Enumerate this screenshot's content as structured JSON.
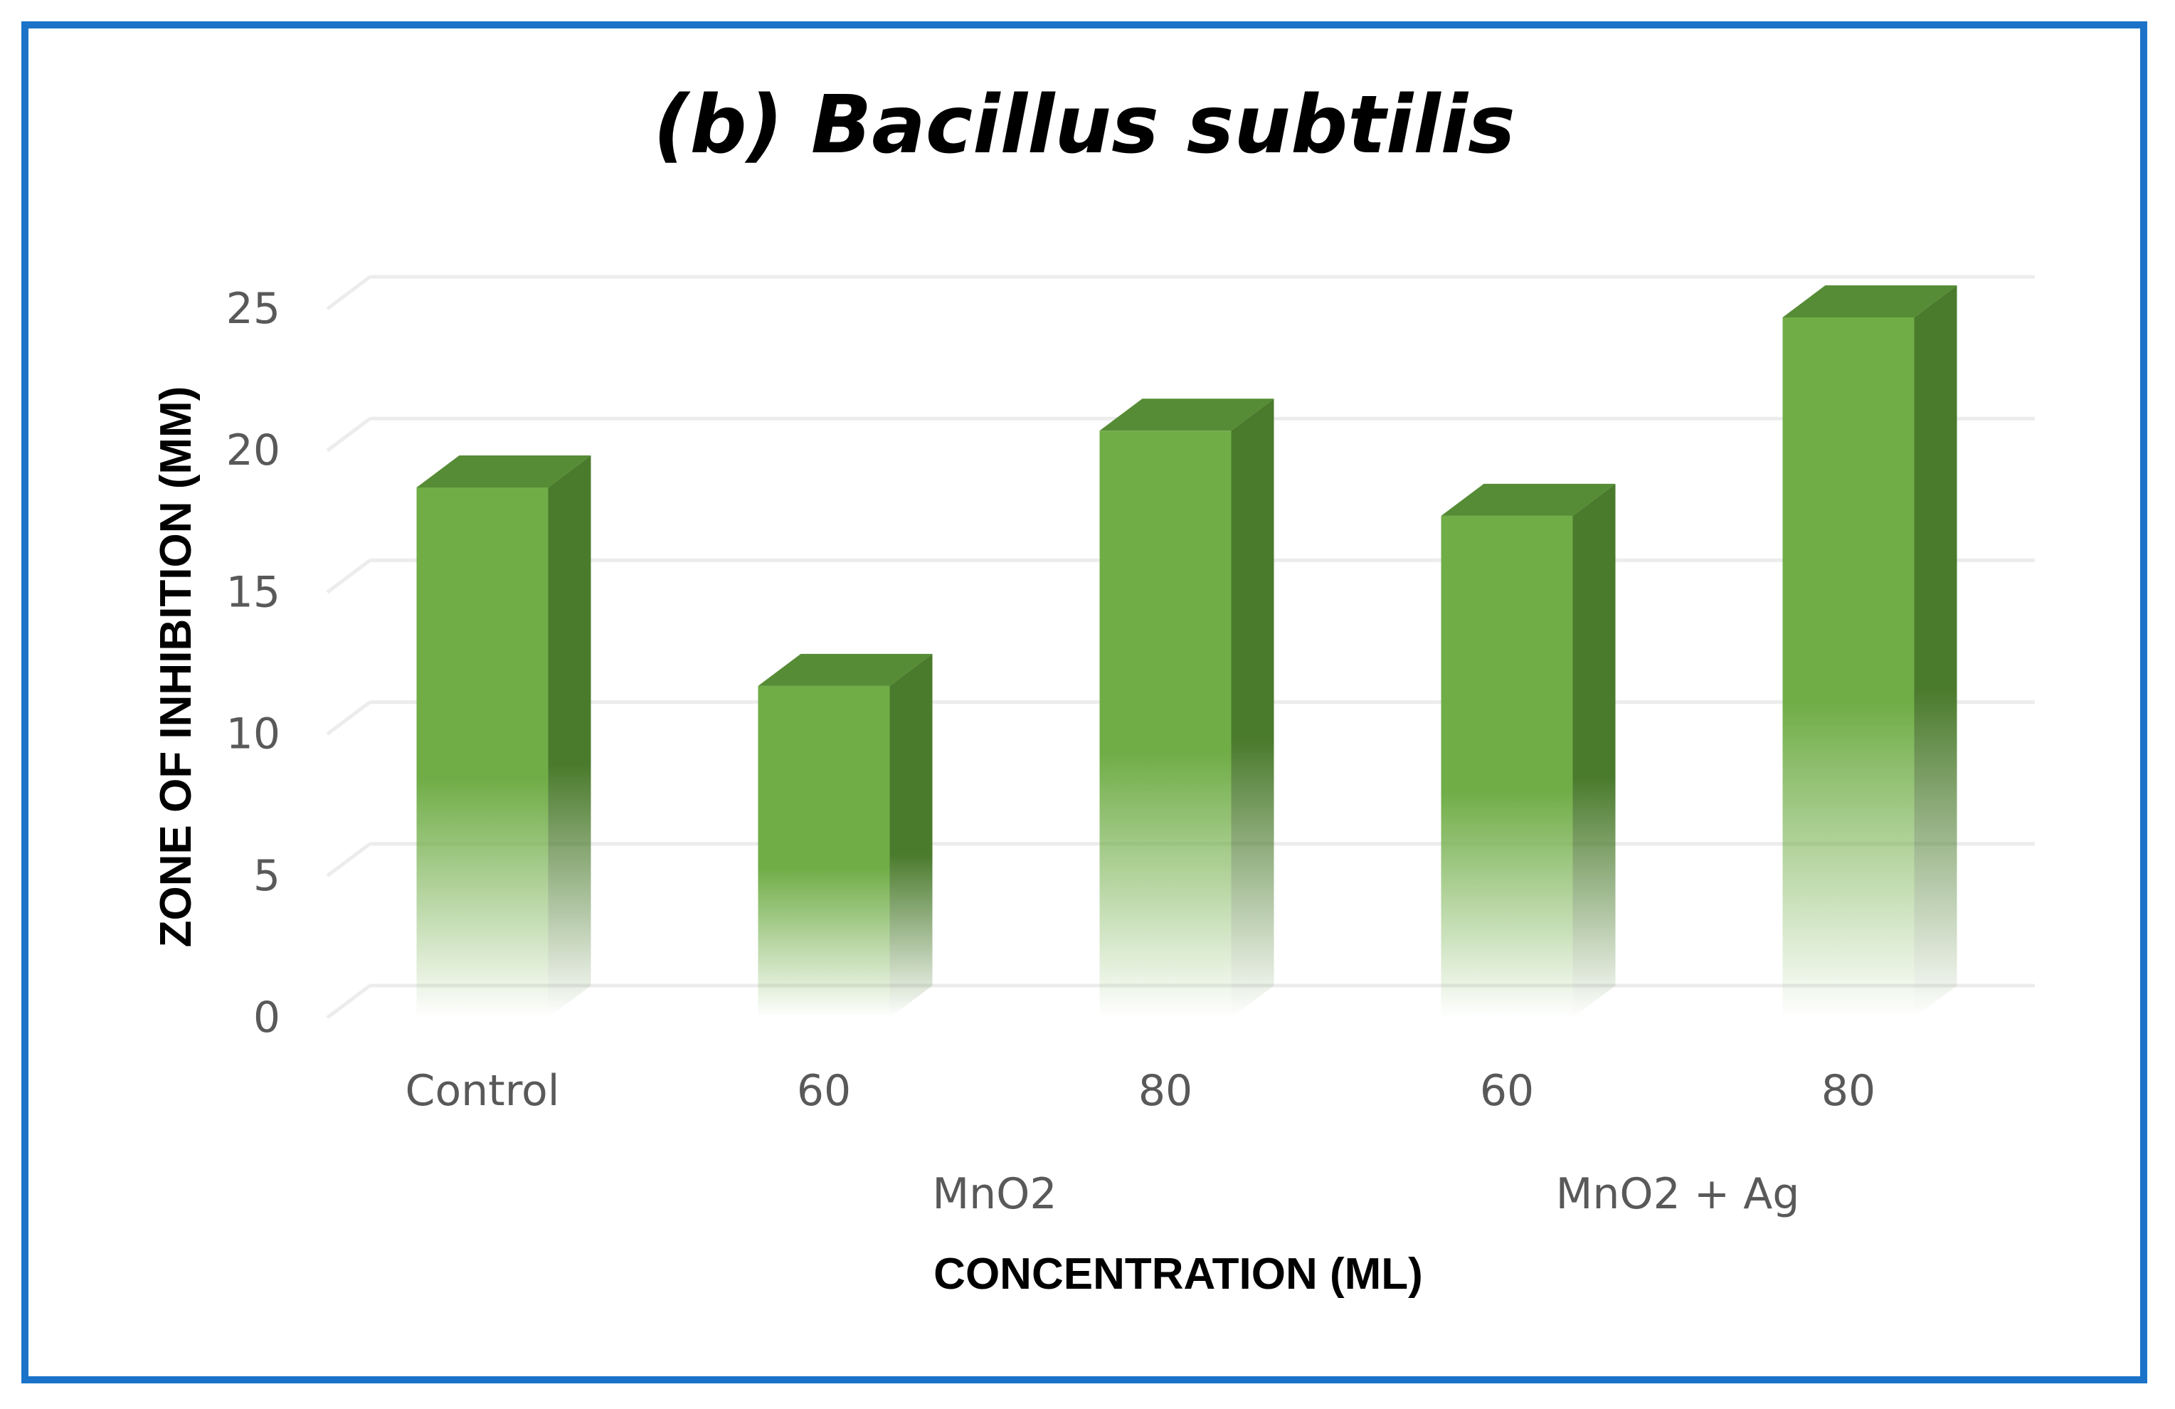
{
  "chart_data": {
    "type": "bar",
    "title": "(b) Bacillus subtilis",
    "xlabel": "CONCENTRATION (ML)",
    "ylabel": "ZONE OF INHIBITION (MM)",
    "ylim": [
      0,
      25
    ],
    "yticks": [
      "0",
      "5",
      "10",
      "15",
      "20",
      "25"
    ],
    "grid": true,
    "categories": [
      "Control",
      "60",
      "80",
      "60",
      "80"
    ],
    "groups": [
      {
        "label": "",
        "span": [
          0,
          0
        ]
      },
      {
        "label": "MnO2",
        "span": [
          1,
          2
        ]
      },
      {
        "label": "MnO2 + Ag",
        "span": [
          3,
          4
        ]
      }
    ],
    "values": [
      18.7,
      11.7,
      20.7,
      17.7,
      24.7
    ],
    "colors": {
      "bar_front": "#70ad47",
      "bar_side": "#4a7a2c",
      "bar_top": "#568c35",
      "grid": "#ececec",
      "frame": "#1a73c8"
    }
  }
}
